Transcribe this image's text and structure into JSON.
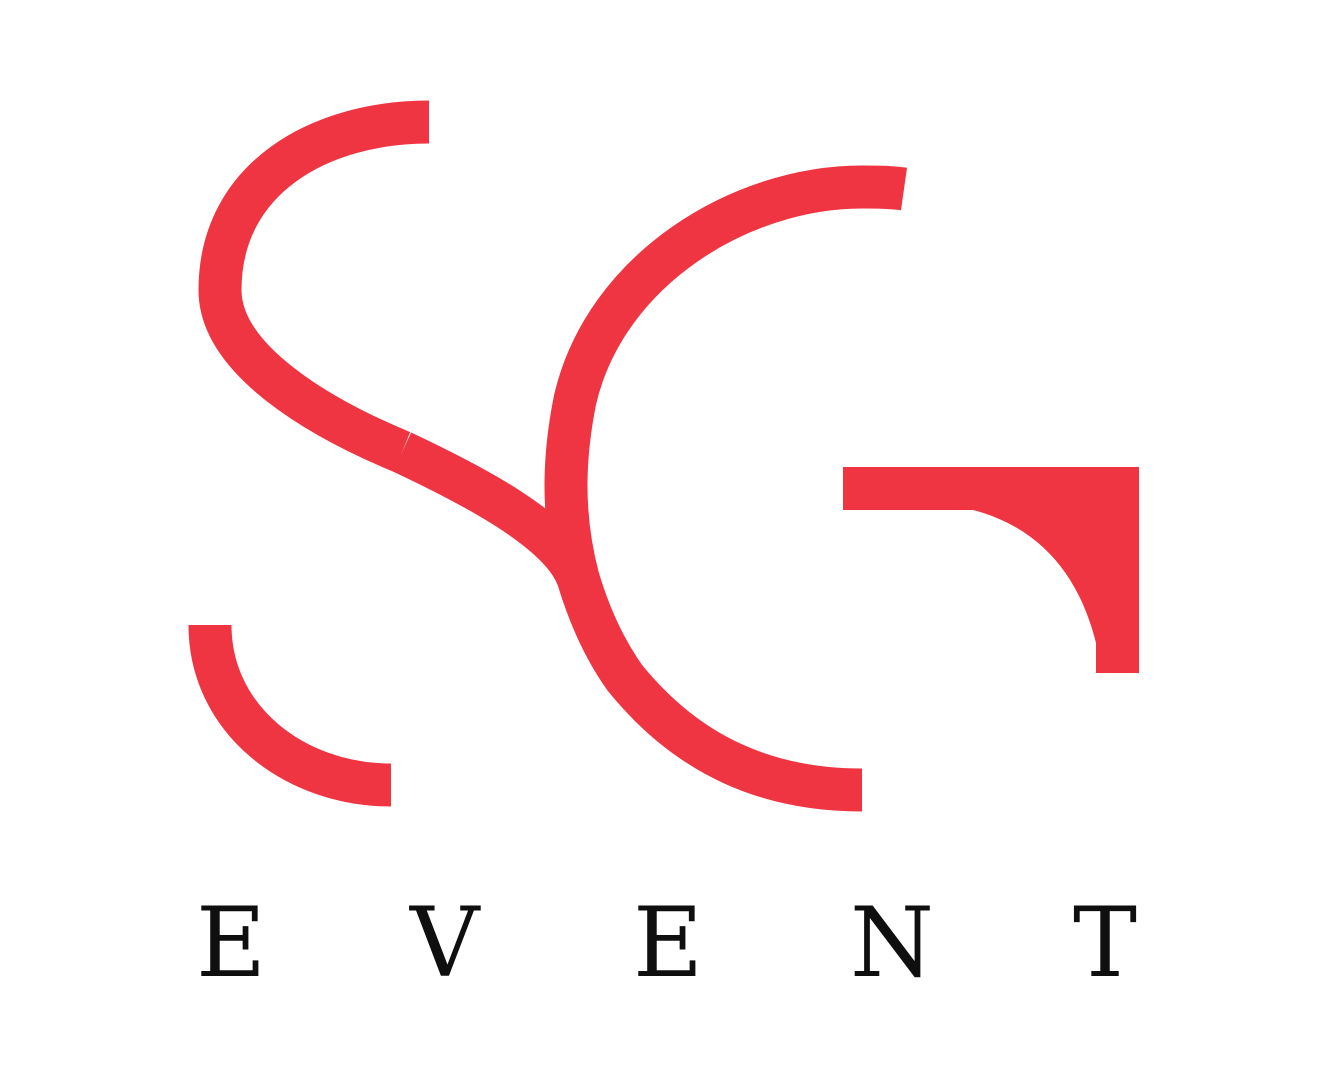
{
  "brand": {
    "monogram": "SG",
    "wordmark_letters": [
      "E",
      "V",
      "E",
      "N",
      "T"
    ],
    "accent_color": "#ef3442",
    "text_color": "#0f0f0f",
    "background_color": "#ffffff"
  }
}
